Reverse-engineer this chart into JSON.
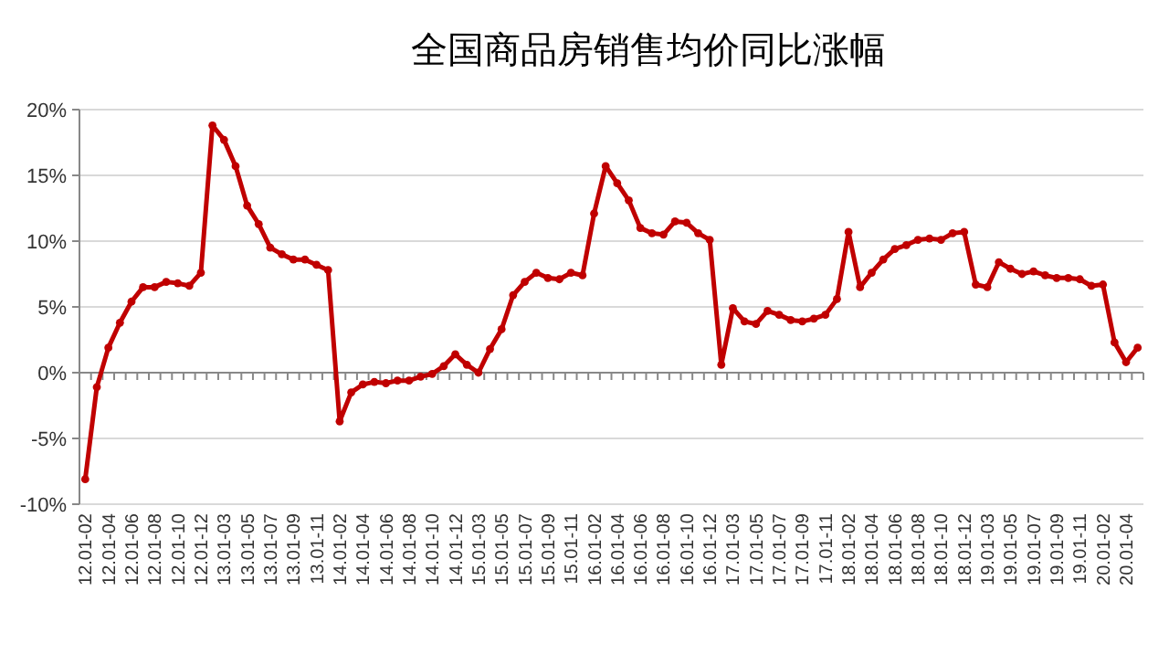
{
  "chart_data": {
    "type": "line",
    "title": "全国商品房销售均价同比涨幅",
    "categories": [
      "12.01-02",
      null,
      "12.01-04",
      null,
      "12.01-06",
      null,
      "12.01-08",
      null,
      "12.01-10",
      null,
      "12.01-12",
      null,
      "13.01-03",
      null,
      "13.01-05",
      null,
      "13.01-07",
      null,
      "13.01-09",
      null,
      "13.01-11",
      null,
      "14.01-02",
      null,
      "14.01-04",
      null,
      "14.01-06",
      null,
      "14.01-08",
      null,
      "14.01-10",
      null,
      "14.01-12",
      null,
      "15.01-03",
      null,
      "15.01-05",
      null,
      "15.01-07",
      null,
      "15.01-09",
      null,
      "15.01-11",
      null,
      "16.01-02",
      null,
      "16.01-04",
      null,
      "16.01-06",
      null,
      "16.01-08",
      null,
      "16.01-10",
      null,
      "16.01-12",
      null,
      "17.01-03",
      null,
      "17.01-05",
      null,
      "17.01-07",
      null,
      "17.01-09",
      null,
      "17.01-11",
      null,
      "18.01-02",
      null,
      "18.01-04",
      null,
      "18.01-06",
      null,
      "18.01-08",
      null,
      "18.01-10",
      null,
      "18.01-12",
      null,
      "19.01-03",
      null,
      "19.01-05",
      null,
      "19.01-07",
      null,
      "19.01-09",
      null,
      "19.01-11",
      null,
      "20.01-02",
      null,
      "20.01-04",
      null
    ],
    "series": [
      {
        "color": "#c00000",
        "values": [
          -8.1,
          -1.1,
          1.9,
          3.8,
          5.4,
          6.5,
          6.5,
          6.9,
          6.8,
          6.6,
          7.6,
          18.8,
          17.7,
          15.7,
          12.7,
          11.3,
          9.5,
          9.0,
          8.6,
          8.6,
          8.2,
          7.8,
          -3.7,
          -1.5,
          -0.9,
          -0.7,
          -0.8,
          -0.6,
          -0.6,
          -0.3,
          -0.1,
          0.5,
          1.4,
          0.6,
          0.0,
          1.8,
          3.3,
          5.9,
          6.9,
          7.6,
          7.2,
          7.1,
          7.6,
          7.4,
          12.1,
          15.7,
          14.4,
          13.1,
          11.0,
          10.6,
          10.5,
          11.5,
          11.4,
          10.6,
          10.1,
          0.6,
          4.9,
          3.9,
          3.7,
          4.7,
          4.4,
          4.0,
          3.9,
          4.1,
          4.4,
          5.6,
          10.7,
          6.5,
          7.6,
          8.6,
          9.4,
          9.7,
          10.1,
          10.2,
          10.1,
          10.6,
          10.7,
          6.7,
          6.5,
          8.4,
          7.9,
          7.5,
          7.7,
          7.4,
          7.2,
          7.2,
          7.1,
          6.6,
          6.7,
          2.3,
          0.8,
          1.9
        ]
      }
    ],
    "ylim": [
      -10,
      20
    ],
    "yticks": [
      {
        "value": -10,
        "label": "-10%"
      },
      {
        "value": -5,
        "label": "-5%"
      },
      {
        "value": 0,
        "label": "0%"
      },
      {
        "value": 5,
        "label": "5%"
      },
      {
        "value": 10,
        "label": "10%"
      },
      {
        "value": 15,
        "label": "15%"
      },
      {
        "value": 20,
        "label": "20%"
      }
    ],
    "grid": "y",
    "marker": "circle",
    "line_style": "solid"
  }
}
